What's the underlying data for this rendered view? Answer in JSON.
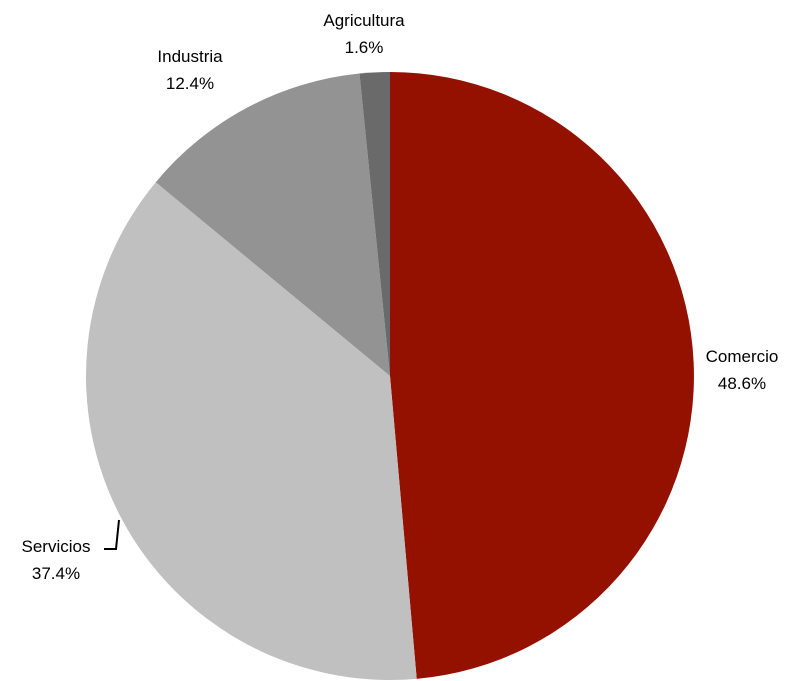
{
  "chart_data": {
    "type": "pie",
    "title": "",
    "slices": [
      {
        "name": "Comercio",
        "value": 48.6,
        "label": "48.6%",
        "color": "#941100"
      },
      {
        "name": "Servicios",
        "value": 37.4,
        "label": "37.4%",
        "color": "#c0c0c0"
      },
      {
        "name": "Industria",
        "value": 12.4,
        "label": "12.4%",
        "color": "#939393"
      },
      {
        "name": "Agricultura",
        "value": 1.6,
        "label": "1.6%",
        "color": "#6a6a6a"
      }
    ],
    "start_angle_deg": 0,
    "direction": "clockwise",
    "legend": "none",
    "label_style": "outside-with-leader"
  }
}
